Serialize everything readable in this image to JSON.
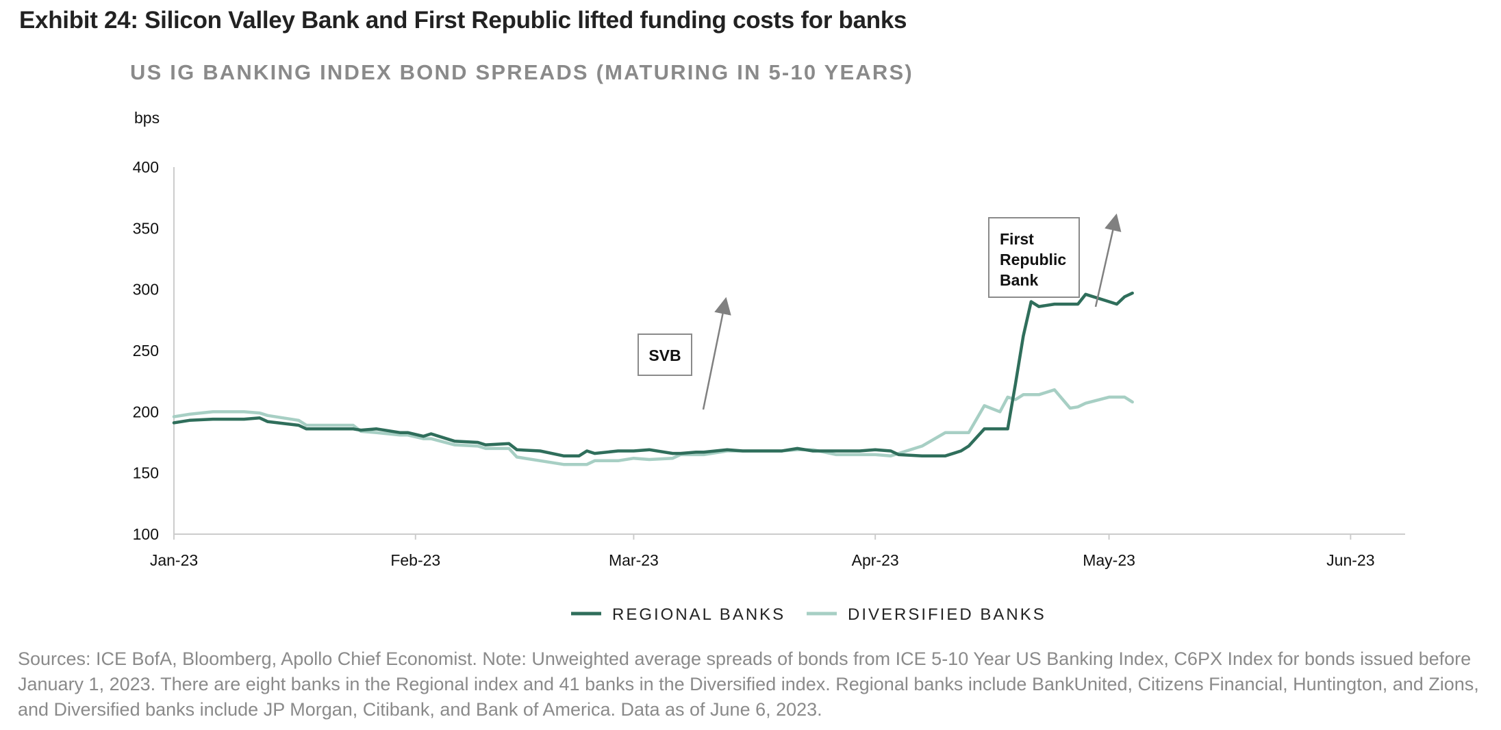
{
  "exhibit_title": "Exhibit 24: Silicon Valley Bank and First Republic lifted funding costs for banks",
  "source_note": "Sources: ICE BofA, Bloomberg, Apollo Chief Economist. Note: Unweighted average spreads of bonds from ICE 5-10 Year US Banking Index, C6PX Index for bonds issued before January 1, 2023. There are eight banks in the Regional index and 41 banks in the Diversified index. Regional banks include BankUnited, Citizens Financial, Huntington, and Zions, and Diversified banks include JP Morgan, Citibank, and Bank of America. Data as of June 6, 2023.",
  "colors": {
    "regional": "#2f6e5b",
    "diversified": "#a7cfc4",
    "axis": "#cccccc",
    "arrow": "#808080"
  },
  "chart_data": {
    "type": "line",
    "title": "US IG BANKING INDEX BOND SPREADS (MATURING IN 5-10 YEARS)",
    "ylabel": "bps",
    "ylim": [
      100,
      400
    ],
    "yticks": [
      100,
      150,
      200,
      250,
      300,
      350,
      400
    ],
    "xlim": [
      "2023-01-01",
      "2023-06-08"
    ],
    "xticks": [
      {
        "date": "2023-01-01",
        "label": "Jan-23"
      },
      {
        "date": "2023-02-01",
        "label": "Feb-23"
      },
      {
        "date": "2023-03-01",
        "label": "Mar-23"
      },
      {
        "date": "2023-04-01",
        "label": "Apr-23"
      },
      {
        "date": "2023-05-01",
        "label": "May-23"
      },
      {
        "date": "2023-06-01",
        "label": "Jun-23"
      }
    ],
    "legend_position": "bottom",
    "series": [
      {
        "name": "REGIONAL BANKS",
        "points": [
          [
            "2023-01-01",
            191
          ],
          [
            "2023-01-03",
            193
          ],
          [
            "2023-01-06",
            194
          ],
          [
            "2023-01-10",
            194
          ],
          [
            "2023-01-12",
            195
          ],
          [
            "2023-01-13",
            192
          ],
          [
            "2023-01-17",
            189
          ],
          [
            "2023-01-18",
            186
          ],
          [
            "2023-01-24",
            186
          ],
          [
            "2023-01-25",
            185
          ],
          [
            "2023-01-27",
            186
          ],
          [
            "2023-01-30",
            183
          ],
          [
            "2023-01-31",
            183
          ],
          [
            "2023-02-02",
            180
          ],
          [
            "2023-02-03",
            182
          ],
          [
            "2023-02-06",
            176
          ],
          [
            "2023-02-09",
            175
          ],
          [
            "2023-02-10",
            173
          ],
          [
            "2023-02-13",
            174
          ],
          [
            "2023-02-14",
            169
          ],
          [
            "2023-02-17",
            168
          ],
          [
            "2023-02-20",
            164
          ],
          [
            "2023-02-22",
            164
          ],
          [
            "2023-02-23",
            168
          ],
          [
            "2023-02-24",
            166
          ],
          [
            "2023-02-27",
            168
          ],
          [
            "2023-03-01",
            168
          ],
          [
            "2023-03-03",
            169
          ],
          [
            "2023-03-06",
            166
          ],
          [
            "2023-03-07",
            166
          ],
          [
            "2023-03-09",
            167
          ],
          [
            "2023-03-10",
            167
          ],
          [
            "2023-03-13",
            169
          ],
          [
            "2023-03-15",
            168
          ],
          [
            "2023-03-17",
            168
          ],
          [
            "2023-03-20",
            168
          ],
          [
            "2023-03-22",
            170
          ],
          [
            "2023-03-24",
            168
          ],
          [
            "2023-03-27",
            168
          ],
          [
            "2023-03-30",
            168
          ],
          [
            "2023-04-01",
            169
          ],
          [
            "2023-04-03",
            168
          ],
          [
            "2023-04-04",
            165
          ],
          [
            "2023-04-07",
            164
          ],
          [
            "2023-04-10",
            164
          ],
          [
            "2023-04-12",
            168
          ],
          [
            "2023-04-13",
            172
          ],
          [
            "2023-04-15",
            186
          ],
          [
            "2023-04-17",
            186
          ],
          [
            "2023-04-18",
            186
          ],
          [
            "2023-04-19",
            223
          ],
          [
            "2023-04-20",
            262
          ],
          [
            "2023-04-21",
            290
          ],
          [
            "2023-04-22",
            286
          ],
          [
            "2023-04-24",
            288
          ],
          [
            "2023-04-26",
            288
          ],
          [
            "2023-04-27",
            288
          ],
          [
            "2023-04-28",
            296
          ],
          [
            "2023-05-01",
            290
          ],
          [
            "2023-05-02",
            288
          ],
          [
            "2023-05-03",
            294
          ],
          [
            "2023-05-04",
            297
          ]
        ]
      },
      {
        "name": "DIVERSIFIED BANKS",
        "points": [
          [
            "2023-01-01",
            196
          ],
          [
            "2023-01-03",
            198
          ],
          [
            "2023-01-06",
            200
          ],
          [
            "2023-01-10",
            200
          ],
          [
            "2023-01-12",
            199
          ],
          [
            "2023-01-13",
            197
          ],
          [
            "2023-01-17",
            193
          ],
          [
            "2023-01-18",
            189
          ],
          [
            "2023-01-24",
            189
          ],
          [
            "2023-01-25",
            184
          ],
          [
            "2023-01-27",
            183
          ],
          [
            "2023-01-30",
            181
          ],
          [
            "2023-01-31",
            181
          ],
          [
            "2023-02-02",
            178
          ],
          [
            "2023-02-03",
            178
          ],
          [
            "2023-02-06",
            173
          ],
          [
            "2023-02-09",
            172
          ],
          [
            "2023-02-10",
            170
          ],
          [
            "2023-02-13",
            170
          ],
          [
            "2023-02-14",
            163
          ],
          [
            "2023-02-17",
            160
          ],
          [
            "2023-02-20",
            157
          ],
          [
            "2023-02-22",
            157
          ],
          [
            "2023-02-23",
            157
          ],
          [
            "2023-02-24",
            160
          ],
          [
            "2023-02-27",
            160
          ],
          [
            "2023-03-01",
            162
          ],
          [
            "2023-03-03",
            161
          ],
          [
            "2023-03-06",
            162
          ],
          [
            "2023-03-07",
            165
          ],
          [
            "2023-03-09",
            165
          ],
          [
            "2023-03-10",
            165
          ],
          [
            "2023-03-13",
            168
          ],
          [
            "2023-03-15",
            168
          ],
          [
            "2023-03-17",
            168
          ],
          [
            "2023-03-20",
            168
          ],
          [
            "2023-03-22",
            169
          ],
          [
            "2023-03-24",
            169
          ],
          [
            "2023-03-27",
            165
          ],
          [
            "2023-03-30",
            165
          ],
          [
            "2023-04-01",
            165
          ],
          [
            "2023-04-03",
            164
          ],
          [
            "2023-04-04",
            166
          ],
          [
            "2023-04-07",
            172
          ],
          [
            "2023-04-10",
            183
          ],
          [
            "2023-04-12",
            183
          ],
          [
            "2023-04-13",
            183
          ],
          [
            "2023-04-15",
            205
          ],
          [
            "2023-04-17",
            200
          ],
          [
            "2023-04-18",
            212
          ],
          [
            "2023-04-19",
            210
          ],
          [
            "2023-04-20",
            214
          ],
          [
            "2023-04-21",
            214
          ],
          [
            "2023-04-22",
            214
          ],
          [
            "2023-04-24",
            218
          ],
          [
            "2023-04-26",
            203
          ],
          [
            "2023-04-27",
            204
          ],
          [
            "2023-04-28",
            207
          ],
          [
            "2023-05-01",
            212
          ],
          [
            "2023-05-02",
            212
          ],
          [
            "2023-05-03",
            212
          ],
          [
            "2023-05-04",
            208
          ]
        ]
      }
    ],
    "annotations": [
      {
        "label": "SVB",
        "lines": [
          "SVB"
        ]
      },
      {
        "label": "First Republic Bank",
        "lines": [
          "First",
          "Republic",
          "Bank"
        ]
      }
    ]
  }
}
